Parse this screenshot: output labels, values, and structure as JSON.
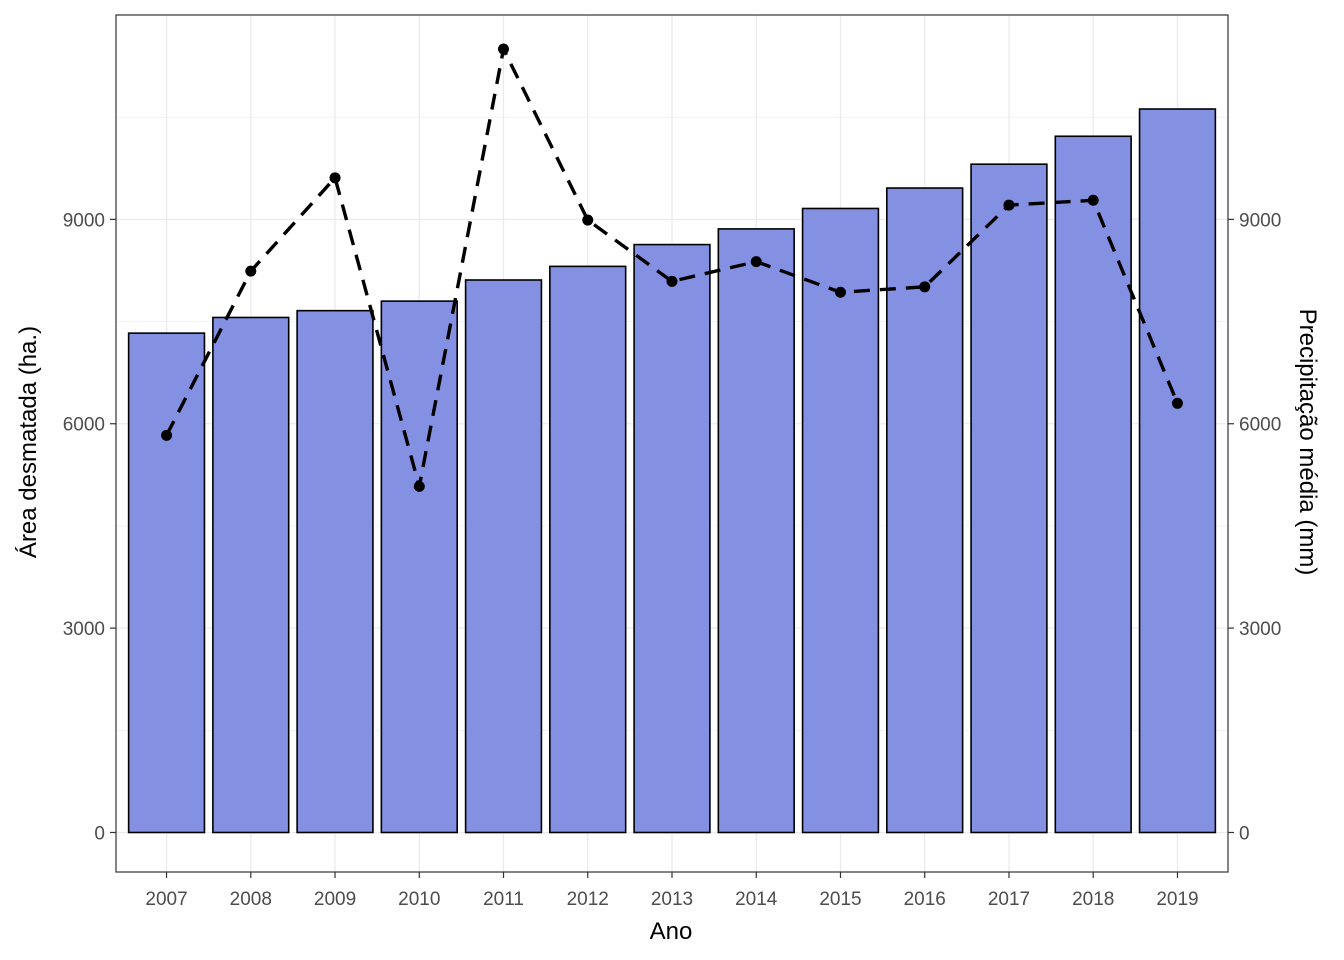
{
  "chart_data": {
    "type": "bar",
    "title": "",
    "xlabel": "Ano",
    "ylabel": "Área desmatada (ha.)",
    "y2label": "Precipitação média (mm)",
    "categories": [
      "2007",
      "2008",
      "2009",
      "2010",
      "2011",
      "2012",
      "2013",
      "2014",
      "2015",
      "2016",
      "2017",
      "2018",
      "2019"
    ],
    "ylim": [
      -580,
      12000
    ],
    "y2lim": [
      -580,
      12000
    ],
    "yticks": [
      0,
      3000,
      6000,
      9000
    ],
    "y2ticks": [
      0,
      3000,
      6000,
      9000
    ],
    "grid": true,
    "series": [
      {
        "type": "bar",
        "axis": "left",
        "values": [
          7330,
          7560,
          7660,
          7800,
          8110,
          8310,
          8630,
          8860,
          9160,
          9460,
          9810,
          10220,
          10620
        ],
        "color": "#8491E3"
      },
      {
        "type": "line",
        "axis": "right",
        "style": "dashed",
        "markers": true,
        "values": [
          5830,
          8240,
          9610,
          5080,
          11500,
          8990,
          8090,
          8380,
          7930,
          8010,
          9210,
          9280,
          6300
        ],
        "color": "#000000"
      }
    ]
  }
}
